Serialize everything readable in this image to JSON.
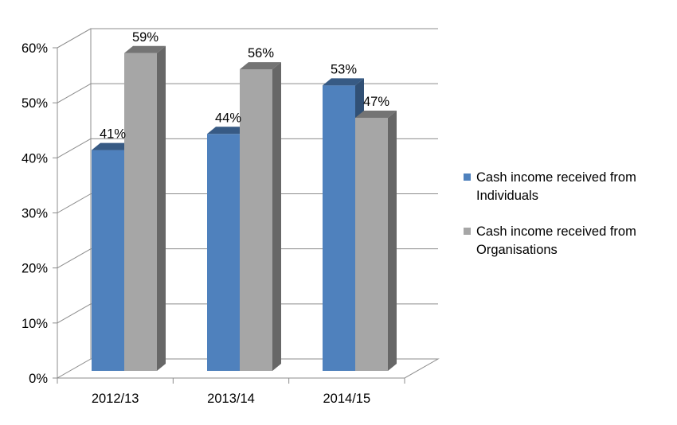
{
  "chart_data": {
    "type": "bar",
    "style": "3d-clustered-column",
    "title": "",
    "xlabel": "",
    "ylabel": "",
    "categories": [
      "2012/13",
      "2013/14",
      "2014/15"
    ],
    "series": [
      {
        "name": "Cash income received from Individuals",
        "values": [
          41,
          44,
          53
        ],
        "labels": [
          "41%",
          "44%",
          "53%"
        ],
        "color": "#4f81bd"
      },
      {
        "name": "Cash income received from Organisations",
        "values": [
          59,
          56,
          47
        ],
        "labels": [
          "59%",
          "56%",
          "47%"
        ],
        "color": "#a6a6a6"
      }
    ],
    "ylim": [
      0,
      60
    ],
    "yticks": [
      "0%",
      "10%",
      "20%",
      "30%",
      "40%",
      "50%",
      "60%"
    ],
    "grid": true,
    "legend_position": "right"
  }
}
